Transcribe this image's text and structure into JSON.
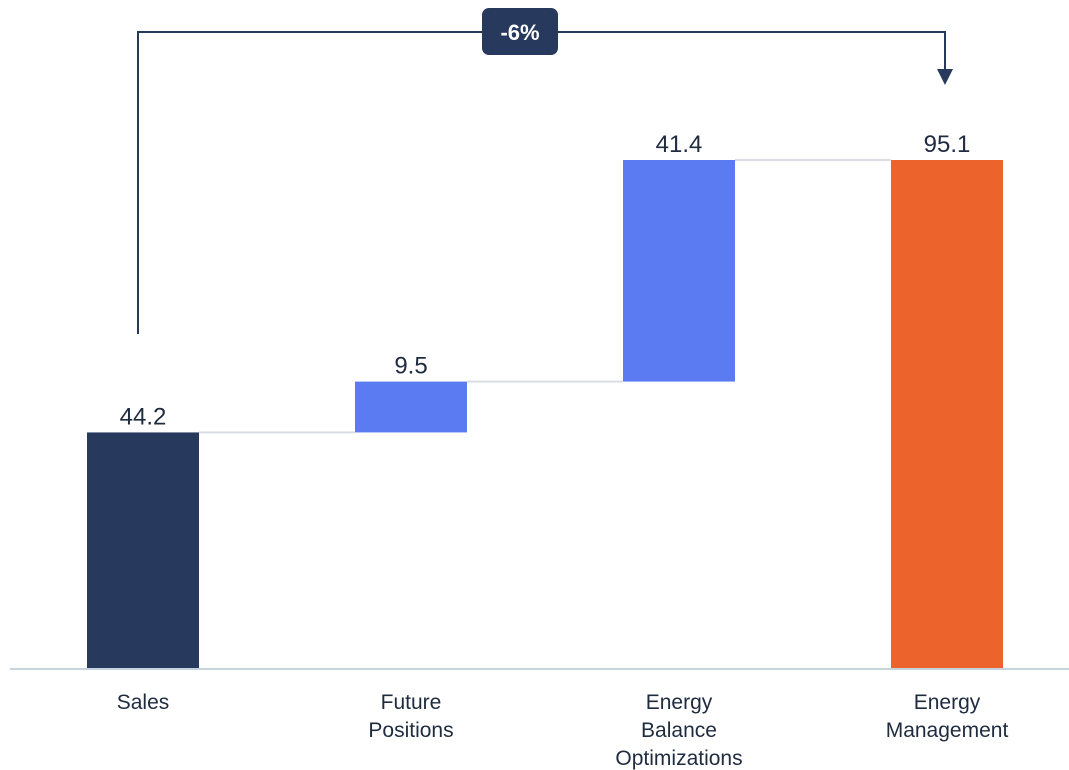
{
  "chart_data": {
    "type": "waterfall",
    "categories": [
      [
        "Sales"
      ],
      [
        "Future",
        "Positions"
      ],
      [
        "Energy",
        "Balance",
        "Optimizations"
      ],
      [
        "Energy",
        "Management"
      ]
    ],
    "values": [
      44.2,
      9.5,
      41.4,
      95.1
    ],
    "value_labels": [
      "44.2",
      "9.5",
      "41.4",
      "95.1"
    ],
    "bar_kind": [
      "total",
      "increase",
      "increase",
      "total"
    ],
    "bracket_label": "-6%",
    "title": "",
    "xlabel": "",
    "ylabel": "",
    "ylim": [
      0,
      95.1
    ],
    "grid": false
  },
  "colors": {
    "total_start": "#273a5e",
    "increase": "#5a7bf2",
    "total_end": "#ec632b",
    "connector": "#d9dde3",
    "baseline": "#c5d3dc",
    "text": "#1f2b3f",
    "badge_bg": "#273a5e",
    "badge_text": "#ffffff"
  }
}
